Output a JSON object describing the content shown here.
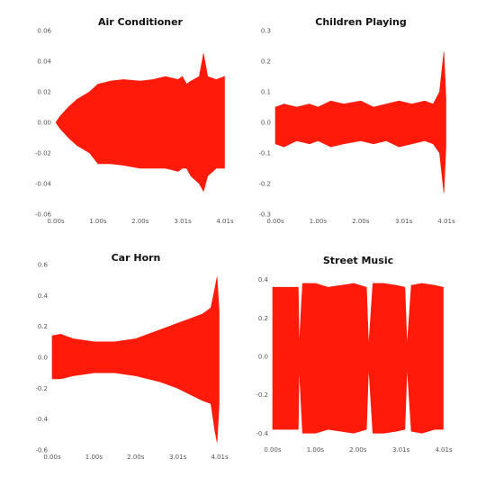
{
  "chart_data": [
    {
      "type": "area",
      "title": "Air Conditioner",
      "xlabel": "",
      "ylabel": "",
      "color": "#ff1a0a",
      "grid": false,
      "xlim": [
        0,
        4.01
      ],
      "ylim": [
        -0.06,
        0.06
      ],
      "x_ticks": [
        0,
        1,
        2,
        3.01,
        4.01
      ],
      "x_tick_labels": [
        "0.00s",
        "1.00s",
        "2.00s",
        "3.01s",
        "4.01s"
      ],
      "y_ticks": [
        0.06,
        0.04,
        0.02,
        0.0,
        -0.02,
        -0.04,
        -0.06
      ],
      "y_tick_labels": [
        "0.06",
        "0.04",
        "0.02",
        "0.00",
        "-0.02",
        "-0.04",
        "-0.06"
      ],
      "series": [
        {
          "x": [
            0,
            0.1,
            0.3,
            0.5,
            0.8,
            1.0,
            1.3,
            1.6,
            2.0,
            2.3,
            2.6,
            2.9,
            3.0,
            3.1,
            3.2,
            3.4,
            3.5,
            3.6,
            3.8,
            4.0
          ],
          "upper": [
            0.0,
            0.004,
            0.01,
            0.015,
            0.02,
            0.025,
            0.027,
            0.028,
            0.027,
            0.028,
            0.03,
            0.028,
            0.03,
            0.025,
            0.027,
            0.03,
            0.045,
            0.03,
            0.028,
            0.03
          ],
          "lower": [
            0.0,
            -0.004,
            -0.01,
            -0.015,
            -0.02,
            -0.027,
            -0.027,
            -0.028,
            -0.03,
            -0.03,
            -0.03,
            -0.032,
            -0.03,
            -0.03,
            -0.035,
            -0.04,
            -0.045,
            -0.035,
            -0.03,
            -0.03
          ]
        }
      ]
    },
    {
      "type": "area",
      "title": "Children Playing",
      "xlabel": "",
      "ylabel": "",
      "color": "#ff1a0a",
      "grid": false,
      "xlim": [
        0,
        4.01
      ],
      "ylim": [
        -0.3,
        0.3
      ],
      "x_ticks": [
        0,
        1,
        2,
        3.01,
        4.01
      ],
      "x_tick_labels": [
        "0.00s",
        "1.00s",
        "2.00s",
        "3.01s",
        "4.01s"
      ],
      "y_ticks": [
        0.3,
        0.2,
        0.1,
        0.0,
        -0.1,
        -0.2,
        -0.3
      ],
      "y_tick_labels": [
        "0.3",
        "0.2",
        "0.1",
        "0.0",
        "-0.1",
        "-0.2",
        "-0.3"
      ],
      "series": [
        {
          "x": [
            0,
            0.2,
            0.5,
            0.8,
            1.0,
            1.3,
            1.6,
            2.0,
            2.3,
            2.6,
            2.9,
            3.2,
            3.5,
            3.7,
            3.85,
            3.95,
            4.0
          ],
          "upper": [
            0.05,
            0.06,
            0.05,
            0.06,
            0.05,
            0.07,
            0.06,
            0.07,
            0.05,
            0.06,
            0.07,
            0.06,
            0.07,
            0.06,
            0.1,
            0.23,
            0.08
          ],
          "lower": [
            -0.07,
            -0.08,
            -0.06,
            -0.07,
            -0.06,
            -0.08,
            -0.07,
            -0.06,
            -0.07,
            -0.06,
            -0.08,
            -0.07,
            -0.06,
            -0.07,
            -0.1,
            -0.23,
            -0.08
          ]
        }
      ]
    },
    {
      "type": "area",
      "title": "Car Horn",
      "xlabel": "",
      "ylabel": "",
      "color": "#ff1a0a",
      "grid": false,
      "xlim": [
        0,
        4.01
      ],
      "ylim": [
        -0.6,
        0.6
      ],
      "x_ticks": [
        0,
        1,
        2,
        3.01,
        4.01
      ],
      "x_tick_labels": [
        "0.00s",
        "1.00s",
        "2.00s",
        "3.01s",
        "4.01s"
      ],
      "y_ticks": [
        0.6,
        0.4,
        0.2,
        0.0,
        -0.2,
        -0.4,
        -0.6
      ],
      "y_tick_labels": [
        "0.6",
        "0.4",
        "0.2",
        "0.0",
        "-0.2",
        "-0.4",
        "-0.6"
      ],
      "series": [
        {
          "x": [
            0,
            0.2,
            0.5,
            1.0,
            1.5,
            2.0,
            2.3,
            2.6,
            3.0,
            3.3,
            3.6,
            3.8,
            3.9,
            3.95,
            4.0
          ],
          "upper": [
            0.14,
            0.15,
            0.12,
            0.1,
            0.1,
            0.12,
            0.15,
            0.18,
            0.22,
            0.25,
            0.28,
            0.32,
            0.45,
            0.52,
            0.3
          ],
          "lower": [
            -0.14,
            -0.14,
            -0.12,
            -0.1,
            -0.1,
            -0.12,
            -0.14,
            -0.16,
            -0.2,
            -0.24,
            -0.28,
            -0.3,
            -0.48,
            -0.55,
            -0.3
          ]
        }
      ]
    },
    {
      "type": "area",
      "title": "Street Music",
      "xlabel": "",
      "ylabel": "",
      "color": "#ff1a0a",
      "grid": false,
      "xlim": [
        0,
        4.01
      ],
      "ylim": [
        -0.45,
        0.45
      ],
      "x_ticks": [
        0,
        1,
        2,
        3.01,
        4.01
      ],
      "x_tick_labels": [
        "0.00s",
        "1.00s",
        "2.00s",
        "3.01s",
        "4.01s"
      ],
      "y_ticks": [
        0.4,
        0.2,
        0.0,
        -0.2,
        -0.4
      ],
      "y_tick_labels": [
        "0.4",
        "0.2",
        "0.0",
        "-0.2",
        "-0.4"
      ],
      "series": [
        {
          "x": [
            0,
            0.6,
            0.62,
            0.7,
            1.0,
            1.3,
            1.6,
            1.9,
            2.2,
            2.25,
            2.35,
            2.6,
            2.9,
            3.1,
            3.15,
            3.25,
            3.5,
            3.8,
            4.0
          ],
          "upper": [
            0.36,
            0.36,
            0.05,
            0.38,
            0.38,
            0.36,
            0.37,
            0.38,
            0.36,
            0.05,
            0.38,
            0.38,
            0.37,
            0.36,
            0.05,
            0.37,
            0.38,
            0.37,
            0.36
          ],
          "lower": [
            -0.38,
            -0.38,
            -0.05,
            -0.4,
            -0.4,
            -0.38,
            -0.39,
            -0.4,
            -0.38,
            -0.05,
            -0.4,
            -0.4,
            -0.39,
            -0.38,
            -0.05,
            -0.39,
            -0.4,
            -0.38,
            -0.38
          ]
        }
      ]
    }
  ]
}
